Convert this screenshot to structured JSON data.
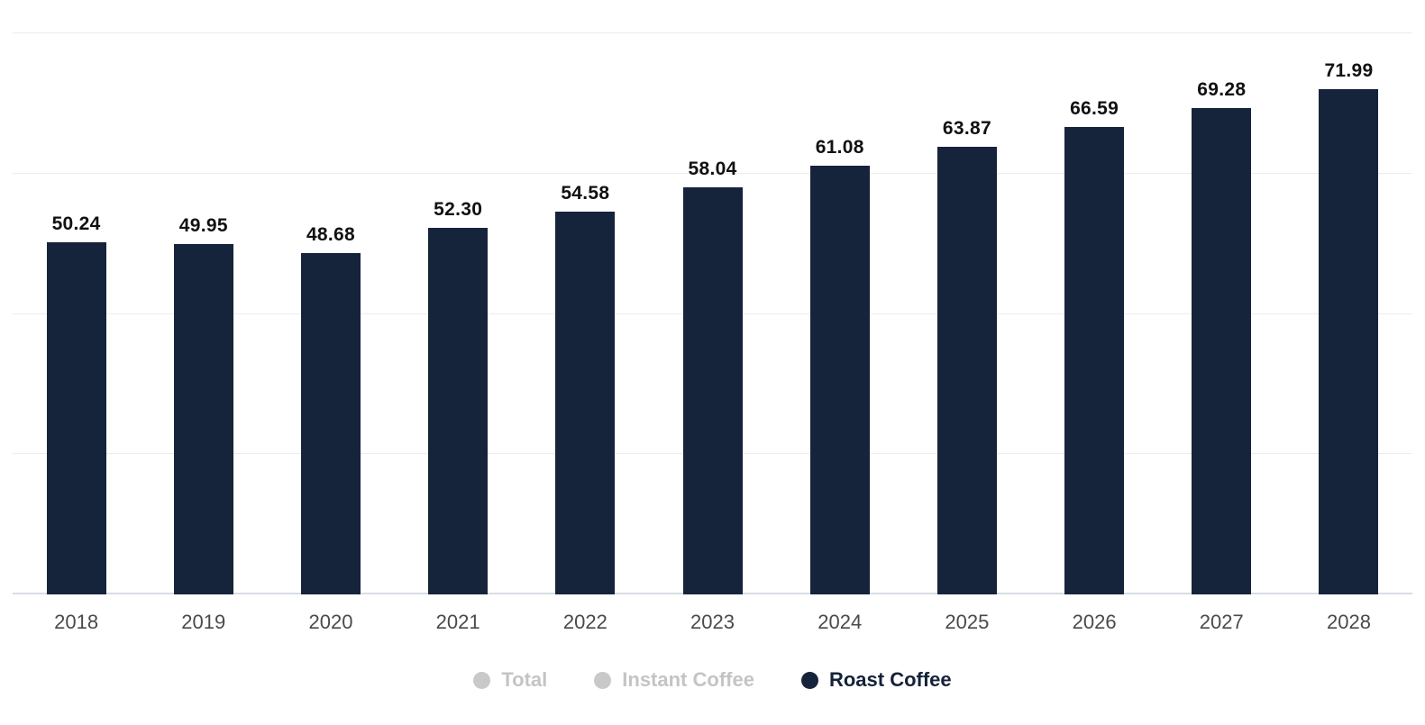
{
  "chart_data": {
    "type": "bar",
    "title": "",
    "xlabel": "",
    "ylabel": "",
    "categories": [
      "2018",
      "2019",
      "2020",
      "2021",
      "2022",
      "2023",
      "2024",
      "2025",
      "2026",
      "2027",
      "2028"
    ],
    "series": [
      {
        "name": "Roast Coffee",
        "values": [
          50.24,
          49.95,
          48.68,
          52.3,
          54.58,
          58.04,
          61.08,
          63.87,
          66.59,
          69.28,
          71.99
        ],
        "labels": [
          "50.24",
          "49.95",
          "48.68",
          "52.30",
          "54.58",
          "58.04",
          "61.08",
          "63.87",
          "66.59",
          "69.28",
          "71.99"
        ]
      }
    ],
    "ylim": [
      0,
      80
    ],
    "grid_step": 20,
    "grid": true,
    "legend_position": "bottom"
  },
  "legend": {
    "items": [
      {
        "label": "Total",
        "active": false
      },
      {
        "label": "Instant Coffee",
        "active": false
      },
      {
        "label": "Roast Coffee",
        "active": true
      }
    ]
  },
  "colors": {
    "bar": "#15243b",
    "grid": "#ececec",
    "axis": "#d9dce6",
    "inactive_dot": "#c9c9c9",
    "inactive_text": "#c4c4c4",
    "value_label": "#111111",
    "axis_label": "#4a4a4a",
    "active_text": "#152238"
  }
}
